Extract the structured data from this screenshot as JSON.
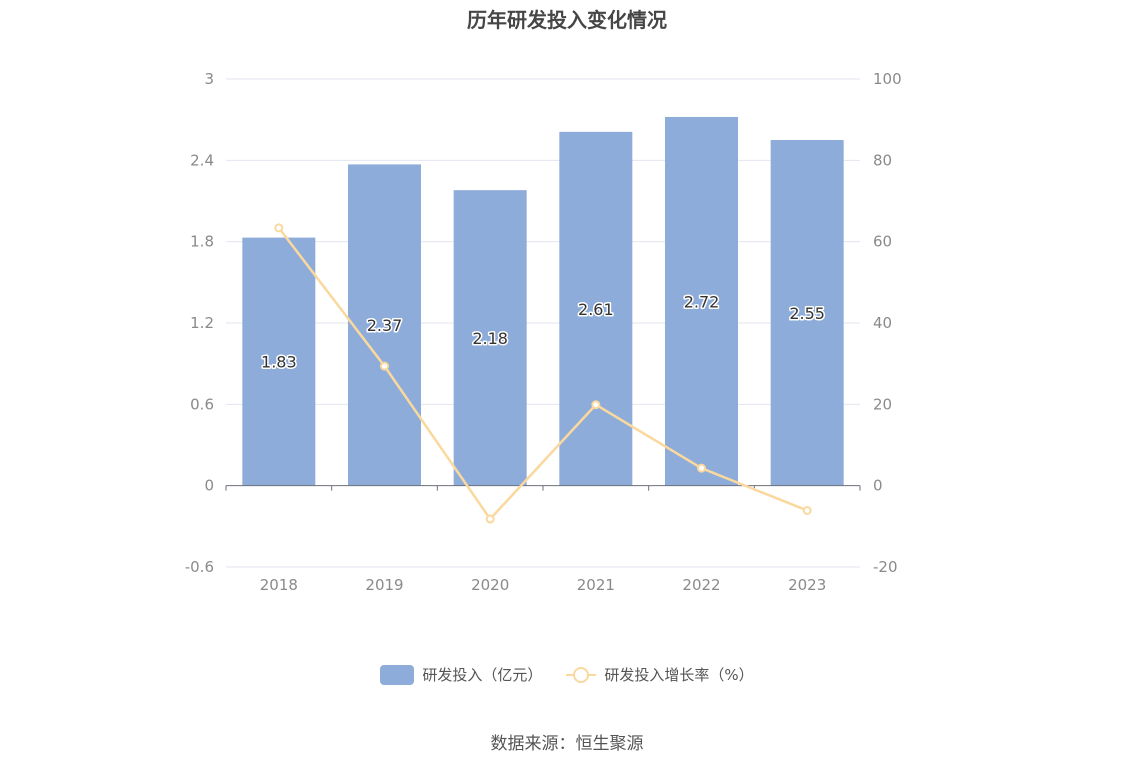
{
  "chart_data": {
    "type": "bar",
    "title": "历年研发投入变化情况",
    "categories": [
      "2018",
      "2019",
      "2020",
      "2021",
      "2022",
      "2023"
    ],
    "series": [
      {
        "name": "研发投入（亿元）",
        "type": "bar",
        "axis": "left",
        "values": [
          1.83,
          2.37,
          2.18,
          2.61,
          2.72,
          2.55
        ],
        "data_labels": [
          "1.83",
          "2.37",
          "2.18",
          "2.61",
          "2.72",
          "2.55"
        ],
        "color": "#8eacd9"
      },
      {
        "name": "研发投入增长率（%）",
        "type": "line",
        "axis": "right",
        "values": [
          63.4,
          29.4,
          -8.2,
          19.9,
          4.3,
          -6.1
        ],
        "color": "#fad89e"
      }
    ],
    "y_left": {
      "ylim": [
        -0.6,
        3
      ],
      "ticks": [
        "-0.6",
        "0",
        "0.6",
        "1.2",
        "1.8",
        "2.4",
        "3"
      ]
    },
    "y_right": {
      "ylim": [
        -20,
        100
      ],
      "ticks": [
        "-20",
        "0",
        "20",
        "40",
        "60",
        "80",
        "100"
      ]
    },
    "grid": true,
    "legend": "bottom-center",
    "source": "数据来源：恒生聚源"
  }
}
